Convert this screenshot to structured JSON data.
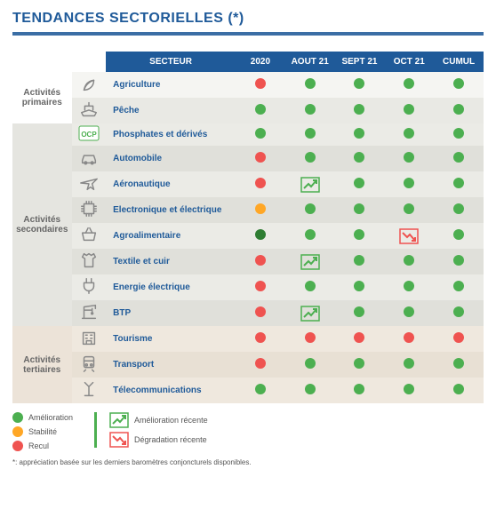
{
  "title": "TENDANCES SECTORIELLES (*)",
  "columns": [
    "SECTEUR",
    "2020",
    "AOUT 21",
    "SEPT 21",
    "OCT 21",
    "CUMUL"
  ],
  "colors": {
    "green": "#4caf50",
    "darkgreen": "#2e7d32",
    "orange": "#ffa726",
    "red": "#ef5350",
    "trend_up": "#4caf50",
    "trend_down": "#ef5350",
    "header_bg": "#1f5a99"
  },
  "groups": [
    {
      "label": "Activités primaires",
      "rows": [
        {
          "sector": "Agriculture",
          "icon": "leaf",
          "cells": [
            "red",
            "green",
            "green",
            "green",
            "green"
          ]
        },
        {
          "sector": "Pêche",
          "icon": "ship",
          "cells": [
            "green",
            "green",
            "green",
            "green",
            "green"
          ]
        }
      ]
    },
    {
      "label": "Activités secondaires",
      "rows": [
        {
          "sector": "Phosphates et dérivés",
          "icon": "ocp",
          "cells": [
            "green",
            "green",
            "green",
            "green",
            "green"
          ]
        },
        {
          "sector": "Automobile",
          "icon": "car",
          "cells": [
            "red",
            "green",
            "green",
            "green",
            "green"
          ]
        },
        {
          "sector": "Aéronautique",
          "icon": "plane",
          "cells": [
            "red",
            "trend_up",
            "green",
            "green",
            "green"
          ]
        },
        {
          "sector": "Electronique et électrique",
          "icon": "chip",
          "cells": [
            "orange",
            "green",
            "green",
            "green",
            "green"
          ]
        },
        {
          "sector": "Agroalimentaire",
          "icon": "basket",
          "cells": [
            "darkgreen",
            "green",
            "green",
            "trend_down",
            "green"
          ]
        },
        {
          "sector": "Textile et cuir",
          "icon": "shirt",
          "cells": [
            "red",
            "trend_up",
            "green",
            "green",
            "green"
          ]
        },
        {
          "sector": "Energie électrique",
          "icon": "plug",
          "cells": [
            "red",
            "green",
            "green",
            "green",
            "green"
          ]
        },
        {
          "sector": "BTP",
          "icon": "crane",
          "cells": [
            "red",
            "trend_up",
            "green",
            "green",
            "green"
          ]
        }
      ]
    },
    {
      "label": "Activités tertiaires",
      "rows": [
        {
          "sector": "Tourisme",
          "icon": "hotel",
          "cells": [
            "red",
            "red",
            "red",
            "red",
            "red"
          ]
        },
        {
          "sector": "Transport",
          "icon": "train",
          "cells": [
            "red",
            "green",
            "green",
            "green",
            "green"
          ]
        },
        {
          "sector": "Télecommunications",
          "icon": "antenna",
          "cells": [
            "green",
            "green",
            "green",
            "green",
            "green"
          ]
        }
      ]
    }
  ],
  "legend": {
    "dots": [
      {
        "label": "Amélioration",
        "color": "green"
      },
      {
        "label": "Stabilité",
        "color": "orange"
      },
      {
        "label": "Recul",
        "color": "red"
      }
    ],
    "trends": [
      {
        "label": "Amélioration récente",
        "kind": "trend_up"
      },
      {
        "label": "Dégradation récente",
        "kind": "trend_down"
      }
    ]
  },
  "footnote": "*: appréciation basée sur les derniers baromètres conjoncturels disponibles."
}
